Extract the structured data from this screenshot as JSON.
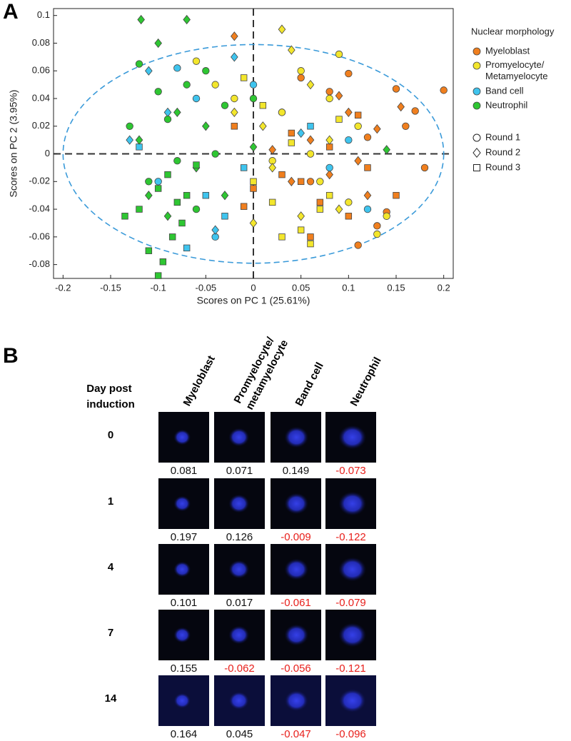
{
  "panel_a_label": "A",
  "chart_data": {
    "type": "scatter",
    "xlabel": "Scores on PC 1 (25.61%)",
    "ylabel": "Scores on PC 2 (3.95%)",
    "xlim": [
      -0.21,
      0.21
    ],
    "ylim": [
      -0.09,
      0.105
    ],
    "xticks": [
      -0.2,
      -0.15,
      -0.1,
      -0.05,
      0,
      0.05,
      0.1,
      0.15,
      0.2
    ],
    "yticks": [
      -0.08,
      -0.06,
      -0.04,
      -0.02,
      0,
      0.02,
      0.04,
      0.06,
      0.08,
      0.1
    ],
    "legend_title": "Nuclear morphology",
    "confidence_ellipse": {
      "cx": 0,
      "cy": 0,
      "rx": 0.2,
      "ry": 0.079
    },
    "markers": [
      {
        "name": "Round 1",
        "marker": "circle"
      },
      {
        "name": "Round 2",
        "marker": "diamond"
      },
      {
        "name": "Round 3",
        "marker": "square"
      }
    ],
    "series": [
      {
        "name": "Myeloblast",
        "color": "#f07f1e",
        "by_round": [
          {
            "x": [
              0.2,
              0.17,
              0.15,
              0.12,
              0.1,
              0.08,
              0.05,
              0.18,
              0.14,
              0.11,
              0.06,
              0.16,
              0.03,
              0.13
            ],
            "y": [
              0.046,
              0.031,
              0.047,
              0.012,
              0.058,
              0.045,
              0.055,
              -0.01,
              -0.042,
              -0.066,
              -0.02,
              0.02,
              0.03,
              -0.052
            ]
          },
          {
            "x": [
              0.155,
              0.13,
              0.1,
              0.08,
              0.04,
              0.06,
              0.02,
              0.12,
              0.09,
              -0.02,
              0.11
            ],
            "y": [
              0.034,
              0.018,
              0.03,
              -0.015,
              -0.02,
              0.01,
              0.003,
              -0.03,
              0.042,
              0.085,
              -0.005
            ]
          },
          {
            "x": [
              0.05,
              0.07,
              0.1,
              0.12,
              0.03,
              0.0,
              -0.02,
              0.08,
              0.15,
              0.06,
              0.04,
              0.11,
              -0.01
            ],
            "y": [
              -0.02,
              -0.035,
              -0.045,
              -0.01,
              -0.015,
              -0.025,
              0.02,
              0.005,
              -0.03,
              -0.06,
              0.015,
              0.028,
              -0.038
            ]
          }
        ]
      },
      {
        "name": "Promyelocyte/ Metamyelocyte",
        "color": "#f3e62c",
        "by_round": [
          {
            "x": [
              0.05,
              0.08,
              0.1,
              -0.06,
              -0.02,
              0.03,
              0.07,
              0.13,
              0.11,
              0.06,
              0.09,
              -0.04,
              0.02,
              0.14
            ],
            "y": [
              0.06,
              0.04,
              -0.035,
              0.067,
              0.04,
              0.03,
              -0.02,
              -0.058,
              0.02,
              0.0,
              0.072,
              0.05,
              -0.005,
              -0.045
            ]
          },
          {
            "x": [
              0.03,
              0.04,
              0.01,
              0.06,
              0.08,
              -0.02,
              0.05,
              0.02,
              0.0,
              0.09
            ],
            "y": [
              0.09,
              0.075,
              0.02,
              0.05,
              0.01,
              0.03,
              -0.045,
              -0.01,
              -0.05,
              -0.04
            ]
          },
          {
            "x": [
              0.03,
              0.05,
              0.07,
              0.02,
              0.0,
              0.09,
              0.08,
              0.04,
              0.01,
              0.06,
              -0.01
            ],
            "y": [
              -0.06,
              -0.055,
              -0.04,
              -0.035,
              -0.02,
              0.025,
              -0.03,
              0.008,
              0.035,
              -0.065,
              0.055
            ]
          }
        ]
      },
      {
        "name": "Band cell",
        "color": "#3fc4ee",
        "by_round": [
          {
            "x": [
              -0.08,
              -0.06,
              -0.04,
              0.0,
              0.08,
              0.12,
              -0.1,
              0.1
            ],
            "y": [
              0.062,
              0.04,
              -0.06,
              0.05,
              -0.01,
              -0.04,
              -0.02,
              0.01
            ]
          },
          {
            "x": [
              -0.13,
              -0.09,
              -0.04,
              -0.02,
              0.05,
              -0.11
            ],
            "y": [
              0.01,
              0.03,
              -0.055,
              0.07,
              0.015,
              0.06
            ]
          },
          {
            "x": [
              -0.12,
              -0.07,
              -0.05,
              -0.03,
              -0.01,
              0.06
            ],
            "y": [
              0.005,
              -0.068,
              -0.03,
              -0.045,
              -0.01,
              0.02
            ]
          }
        ]
      },
      {
        "name": "Neutrophil",
        "color": "#2ec632",
        "by_round": [
          {
            "x": [
              -0.12,
              -0.1,
              -0.09,
              -0.07,
              -0.05,
              -0.08,
              -0.03,
              -0.11,
              -0.06,
              0.0,
              -0.04,
              -0.13
            ],
            "y": [
              0.065,
              0.045,
              0.025,
              0.05,
              0.06,
              -0.005,
              0.035,
              -0.02,
              -0.04,
              0.04,
              0.0,
              0.02
            ]
          },
          {
            "x": [
              -0.118,
              -0.07,
              -0.1,
              -0.08,
              -0.06,
              -0.12,
              -0.09,
              -0.03,
              -0.05,
              -0.11,
              0.0,
              0.14
            ],
            "y": [
              0.097,
              0.097,
              0.08,
              0.03,
              -0.01,
              0.01,
              -0.045,
              -0.03,
              0.02,
              -0.03,
              0.005,
              0.003
            ]
          },
          {
            "x": [
              -0.1,
              -0.095,
              -0.11,
              -0.085,
              -0.075,
              -0.12,
              -0.07,
              -0.1,
              -0.09,
              -0.135,
              -0.06,
              -0.08
            ],
            "y": [
              -0.088,
              -0.078,
              -0.07,
              -0.06,
              -0.05,
              -0.04,
              -0.03,
              -0.025,
              -0.015,
              -0.045,
              -0.008,
              -0.035
            ]
          }
        ]
      }
    ]
  },
  "panel_b": {
    "label": "B",
    "row_header": "Day post induction",
    "columns": [
      "Myeloblast",
      "Promyelocyte/ metamyelocyte",
      "Band cell",
      "Neutrophil"
    ],
    "rows": [
      {
        "day": 0,
        "values": [
          0.081,
          0.071,
          0.149,
          -0.073
        ]
      },
      {
        "day": 1,
        "values": [
          0.197,
          0.126,
          -0.009,
          -0.122
        ]
      },
      {
        "day": 4,
        "values": [
          0.101,
          0.017,
          -0.061,
          -0.079
        ]
      },
      {
        "day": 7,
        "values": [
          0.155,
          -0.062,
          -0.056,
          -0.121
        ]
      },
      {
        "day": 14,
        "values": [
          0.164,
          0.045,
          -0.047,
          -0.096
        ]
      }
    ]
  }
}
